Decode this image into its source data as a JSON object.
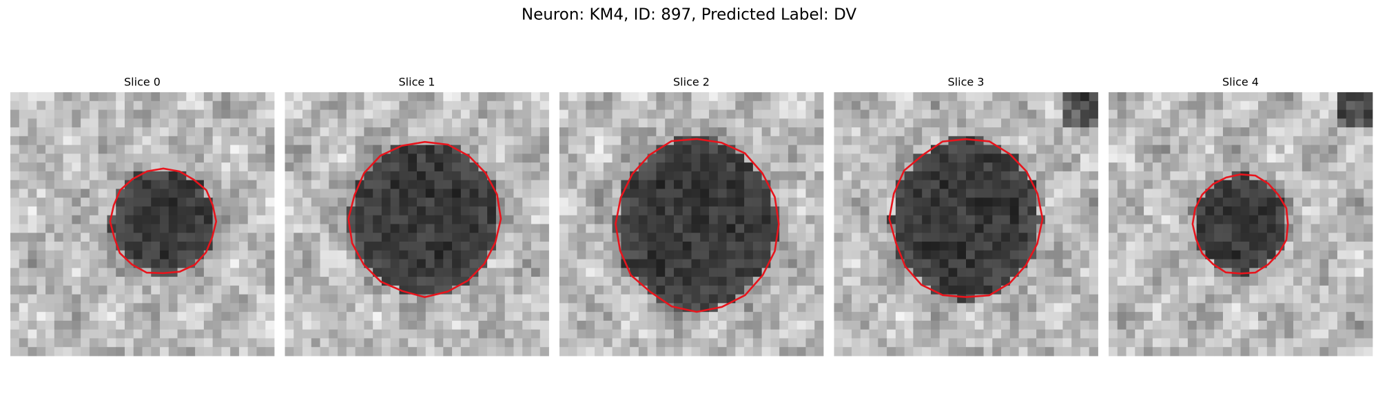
{
  "figure": {
    "title": "Neuron: KM4, ID: 897, Predicted Label: DV",
    "panels": [
      {
        "title": "Slice 0"
      },
      {
        "title": "Slice 1"
      },
      {
        "title": "Slice 2"
      },
      {
        "title": "Slice 3"
      },
      {
        "title": "Slice 4"
      }
    ]
  }
}
